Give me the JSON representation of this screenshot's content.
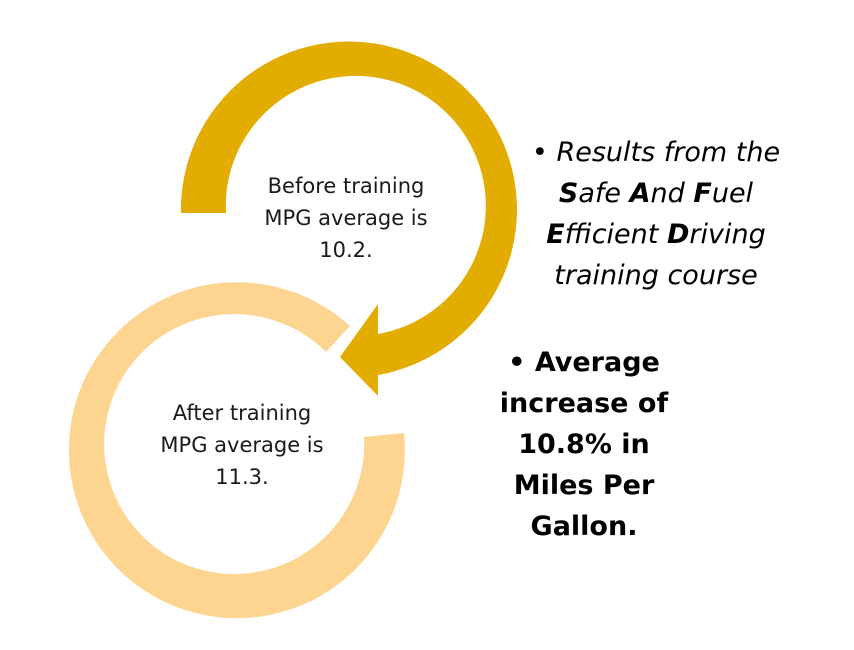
{
  "diagram": {
    "before_circle": {
      "lines": [
        "Before training",
        "MPG average is",
        "10.2."
      ],
      "color": "#e2ac00"
    },
    "after_circle": {
      "lines": [
        "After training",
        "MPG average is",
        "11.3."
      ],
      "color": "#fdd591"
    }
  },
  "results": {
    "bullet": "•",
    "line1": "Results from the",
    "line2": {
      "s_hl": "S",
      "s_rest": "afe ",
      "a_hl": "A",
      "a_rest": "nd ",
      "f_hl": "F",
      "f_rest": "uel"
    },
    "line3": {
      "e_hl": "E",
      "e_rest": "fficient ",
      "d_hl": "D",
      "d_rest": "riving"
    },
    "line4": "training course"
  },
  "average": {
    "bullet": "•",
    "lines": [
      "Average",
      "increase of",
      "10.8% in",
      "Miles Per",
      "Gallon."
    ]
  }
}
